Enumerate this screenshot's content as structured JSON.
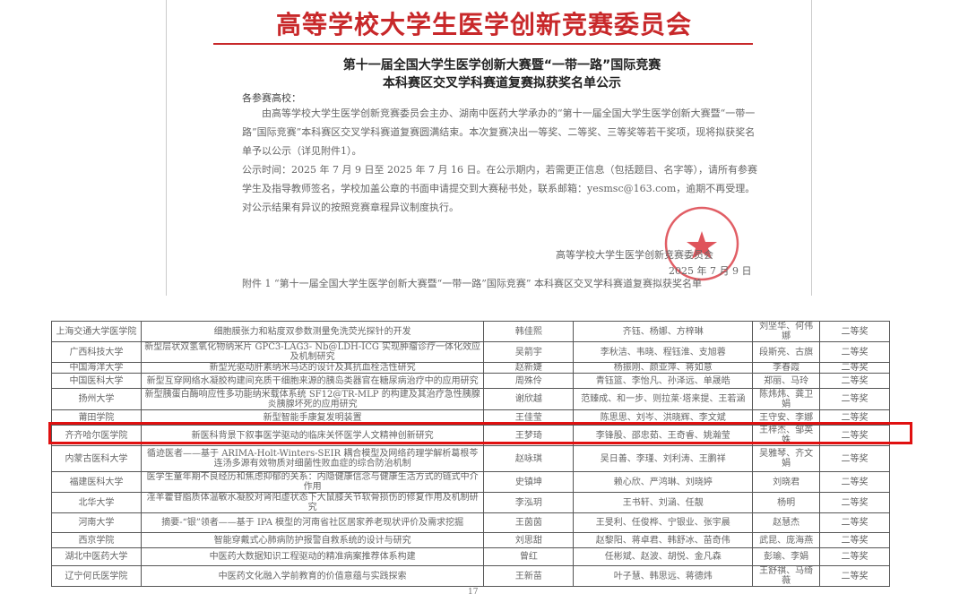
{
  "header": {
    "organization": "高等学校大学生医学创新竞赛委员会"
  },
  "notice": {
    "title_line1": "第十一届全国大学生医学创新大赛暨“一带一路”国际竞赛",
    "title_line2": "本科赛区交叉学科赛道复赛拟获奖名单公示",
    "salutation": "各参赛高校：",
    "paragraph1": "由高等学校大学生医学创新竞赛委员会主办、湖南中医药大学承办的“第十一届全国大学生医学创新大赛暨“一带一路”国际竞赛”本科赛区交叉学科赛道复赛圆满结束。本次复赛决出一等奖、二等奖、三等奖等若干奖项，现将拟获奖名单予以公示（详见附件1）。",
    "paragraph2": "公示时间：2025 年 7 月 9 日至 2025 年 7 月 16 日。在公示期内，若需更正信息（包括题目、名字等），请所有参赛学生及指导教师签名，学校加盖公章的书面申请提交到大赛秘书处，联系邮箱：yesmsc@163.com，逾期不再受理。对公示结果有异议的按照竞赛章程异议制度执行。",
    "signature": "高等学校大学生医学创新竞赛委员会",
    "date": "2025 年 7 月 9 日",
    "attachment": "附件 1  “第十一届全国大学生医学创新大赛暨“一带一路”国际竞赛” 本科赛区交叉学科赛道复赛拟获奖名单"
  },
  "seal": {
    "text": "高等学校大学生医学创新竞赛委员会",
    "color": "#d9363e"
  },
  "table": {
    "rows": [
      [
        "上海交通大学医学院",
        "细胞膜张力和粘度双参数测量免洗荧光探针的开发",
        "韩佳熙",
        "齐钰、杨娜、方梓琳",
        "刘坚华、何伟娜",
        "二等奖"
      ],
      [
        "广西科技大学",
        "新型层状双氢氧化物纳米片 GPC3-LAG3- Nb@LDH-ICG 实现肿瘤诊疗一体化效应及机制研究",
        "吴箭宇",
        "李秋洁、韦晓、程钰淮、支旭蓉",
        "段斯亮、古旗",
        "二等奖"
      ],
      [
        "中国海洋大学",
        "新型光驱动肝素纳米马达的设计及其抗血栓活性研究",
        "赵新婕",
        "杨振刚、颜亚萍、蒋如意",
        "李春霞",
        "二等奖"
      ],
      [
        "中国医科大学",
        "新型互穿网络水凝胶构建间充质干细胞来源的胰岛类器官在糖尿病治疗中的应用研究",
        "周殊伶",
        "青钰篮、李怡凡、孙泽远、单晟皓",
        "郑丽、马玲",
        "二等奖"
      ],
      [
        "扬州大学",
        "新型胰蛋白酶响应性多功能纳米载体系统 SF12@TR-MLP 的构建及其治疗急性胰腺炎胰腺坏死的应用研究",
        "谢欣越",
        "范臻成、和一步、则拉莱·塔来提、王若涵",
        "陈炜炜、龚卫娟",
        "二等奖"
      ],
      [
        "莆田学院",
        "新型智能手康复发明装置",
        "王佳莹",
        "陈思思、刘岑、洪晓辉、李文斌",
        "王守安、李娜",
        "二等奖"
      ],
      [
        "齐齐哈尔医学院",
        "新医科背景下叙事医学驱动的临床关怀医学人文精神创新研究",
        "王梦琦",
        "李锋股、邵忠茹、王奇睿、姚瀚莹",
        "王梓杰、邹英姝",
        "二等奖"
      ],
      [
        "内蒙古医科大学",
        "循迹医者——基于 ARIMA-Holt-Winters-SEIR 耦合模型及网络药理学解析葛根芩连汤多源有效物质对细菌性败血症的综合防治机制",
        "赵咏琪",
        "吴日善、李瑾、刘利涛、王鹏祥",
        "吴雅琴、齐文娟",
        "二等奖"
      ],
      [
        "福建医科大学",
        "医学生童年期不良经历和焦虑抑郁的关系：内隐健康信念与健康生活方式的链式中介作用",
        "史镇坤",
        "赖心欣、严鸿琳、刘晓婷",
        "刘晓君",
        "二等奖"
      ],
      [
        "北华大学",
        "淫羊藿苷脂质体温敏水凝胶对肾阳虚状态下大鼠膝关节软骨损伤的修复作用及机制研究",
        "李泓玥",
        "王书轩、刘涵、任靓",
        "杨明",
        "二等奖"
      ],
      [
        "河南大学",
        "摘要-“银”领者——基于 IPA 模型的河南省社区居家养老现状评价及需求挖掘",
        "王茵茵",
        "王旻利、任俊桦、宁银业、张宇晨",
        "赵慧杰",
        "二等奖"
      ],
      [
        "西京学院",
        "智能穿戴式心肺病防护报警自救系统的设计与研究",
        "刘思甜",
        "赵黎阳、蒋卓君、韩舒冰、苗奇伟",
        "武昆、庞海燕",
        "二等奖"
      ],
      [
        "湖北中医药大学",
        "中医药大数据知识工程驱动的精准病案推荐体系构建",
        "曾红",
        "任彬斌、赵波、胡悦、金凡森",
        "彭瑜、李娟",
        "二等奖"
      ],
      [
        "辽宁何氏医学院",
        "中医药文化融入学前教育的价值意蕴与实践探索",
        "王新苗",
        "叶子慧、韩思远、蒋德炜",
        "王舒祺、马绮薇",
        "二等奖"
      ]
    ],
    "highlighted_row": 6,
    "highlight_color": "#e01010"
  },
  "page_number": "17"
}
